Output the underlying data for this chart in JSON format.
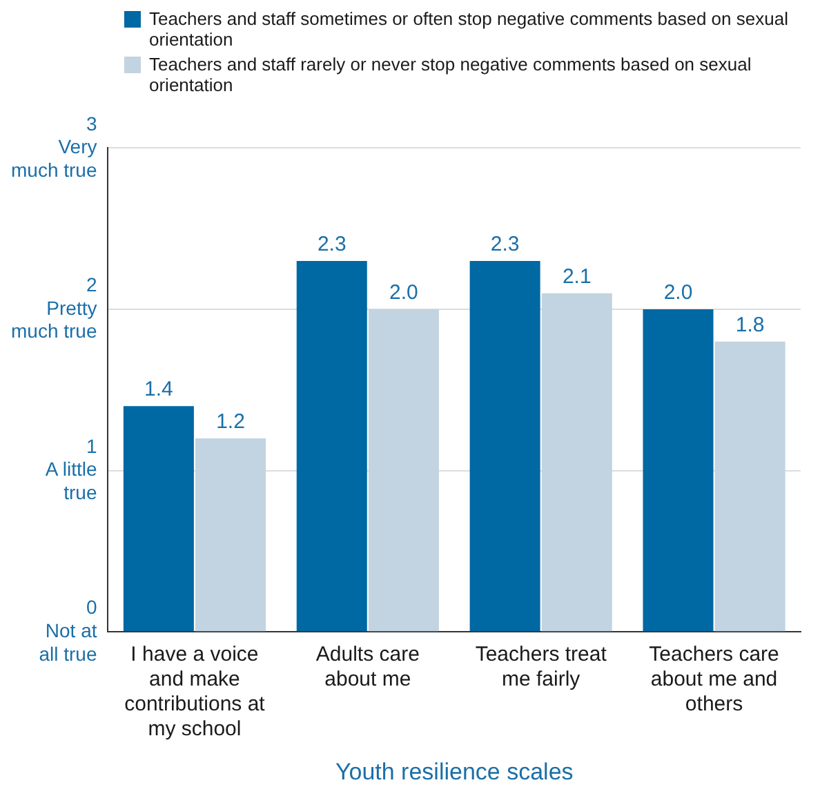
{
  "chart_data": {
    "type": "bar",
    "xlabel": "Youth resilience scales",
    "categories": [
      "I have a voice and make contributions at my school",
      "Adults care about me",
      "Teachers treat me fairly",
      "Teachers care about me and others"
    ],
    "series": [
      {
        "name": "Teachers and staff sometimes or often stop negative comments based on sexual orientation",
        "color": "#0068a3",
        "values": [
          1.4,
          2.3,
          2.3,
          2.0
        ],
        "value_labels": [
          "1.4",
          "2.3",
          "2.3",
          "2.0"
        ]
      },
      {
        "name": "Teachers and staff rarely or never stop negative comments based on sexual orientation",
        "color": "#c2d3e1",
        "values": [
          1.2,
          2.0,
          2.1,
          1.8
        ],
        "value_labels": [
          "1.2",
          "2.0",
          "2.1",
          "1.8"
        ]
      }
    ],
    "ylim": [
      0,
      3
    ],
    "yticks": [
      {
        "value": 0,
        "label": "0\nNot at\nall true"
      },
      {
        "value": 1,
        "label": "1\nA little\ntrue"
      },
      {
        "value": 2,
        "label": "2\nPretty\nmuch true"
      },
      {
        "value": 3,
        "label": "3\nVery\nmuch true"
      }
    ],
    "grid": "y",
    "legend": "top"
  }
}
